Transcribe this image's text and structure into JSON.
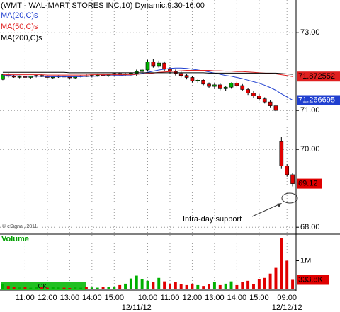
{
  "chart_data": {
    "type": "candlestick",
    "title": "(WMT - WAL-MART STORES INC,10) Dynamic,9:30-16:00",
    "categories": [
      null,
      null,
      null,
      null,
      "11:00",
      null,
      null,
      null,
      "12:00",
      null,
      null,
      null,
      "13:00",
      null,
      null,
      null,
      "14:00",
      null,
      null,
      null,
      "15:00",
      null,
      null,
      null,
      null,
      null,
      "10:00",
      null,
      null,
      null,
      "11:00",
      null,
      null,
      null,
      "12:00",
      null,
      null,
      null,
      "13:00",
      null,
      null,
      null,
      "14:00",
      null,
      null,
      null,
      "15:00",
      null,
      null,
      null,
      null,
      "09:00",
      null
    ],
    "date_labels": [
      null,
      null,
      null,
      null,
      null,
      null,
      null,
      null,
      null,
      null,
      null,
      null,
      null,
      null,
      null,
      null,
      null,
      null,
      null,
      null,
      null,
      null,
      null,
      null,
      "12/11/12",
      null,
      null,
      null,
      null,
      null,
      null,
      null,
      null,
      null,
      null,
      null,
      null,
      null,
      null,
      null,
      null,
      null,
      null,
      null,
      null,
      null,
      null,
      null,
      null,
      null,
      null,
      "12/12/12",
      null
    ],
    "open": [
      71.8,
      71.92,
      71.88,
      71.86,
      71.87,
      71.85,
      71.88,
      71.9,
      71.87,
      71.85,
      71.86,
      71.89,
      71.86,
      71.84,
      71.87,
      71.89,
      71.88,
      71.9,
      71.92,
      71.9,
      71.93,
      71.95,
      71.92,
      71.94,
      71.95,
      72.0,
      72.04,
      72.25,
      72.15,
      72.22,
      72.06,
      72.0,
      71.95,
      71.9,
      71.85,
      71.76,
      71.78,
      71.68,
      71.62,
      71.66,
      71.56,
      71.6,
      71.7,
      71.64,
      71.54,
      71.45,
      71.38,
      71.3,
      71.22,
      71.12,
      70.2,
      69.58,
      69.35
    ],
    "high": [
      71.95,
      71.96,
      71.92,
      71.9,
      71.9,
      71.89,
      71.92,
      71.93,
      71.9,
      71.88,
      71.9,
      71.92,
      71.89,
      71.88,
      71.91,
      71.93,
      71.92,
      71.95,
      71.96,
      71.94,
      71.97,
      71.98,
      71.96,
      71.98,
      72.05,
      72.08,
      72.3,
      72.32,
      72.28,
      72.26,
      72.12,
      72.05,
      72.0,
      71.95,
      71.88,
      71.82,
      71.8,
      71.72,
      71.7,
      71.7,
      71.62,
      71.72,
      71.74,
      71.68,
      71.58,
      71.5,
      71.42,
      71.34,
      71.26,
      71.16,
      70.32,
      69.62,
      69.4
    ],
    "low": [
      71.78,
      71.85,
      71.84,
      71.83,
      71.84,
      71.82,
      71.85,
      71.86,
      71.83,
      71.82,
      71.84,
      71.85,
      71.82,
      71.81,
      71.85,
      71.86,
      71.85,
      71.87,
      71.88,
      71.87,
      71.9,
      71.9,
      71.88,
      71.9,
      71.88,
      71.95,
      72.0,
      72.1,
      72.1,
      72.02,
      71.95,
      71.9,
      71.85,
      71.8,
      71.72,
      71.7,
      71.65,
      71.58,
      71.55,
      71.52,
      71.5,
      71.56,
      71.6,
      71.5,
      71.4,
      71.32,
      71.25,
      71.18,
      71.08,
      70.95,
      69.5,
      69.3,
      69.05
    ],
    "close": [
      71.92,
      71.88,
      71.86,
      71.87,
      71.85,
      71.88,
      71.9,
      71.87,
      71.85,
      71.86,
      71.89,
      71.86,
      71.84,
      71.87,
      71.89,
      71.88,
      71.9,
      71.92,
      71.9,
      71.93,
      71.95,
      71.92,
      71.94,
      71.96,
      72.0,
      72.04,
      72.25,
      72.15,
      72.22,
      72.06,
      72.0,
      71.95,
      71.9,
      71.85,
      71.76,
      71.78,
      71.68,
      71.62,
      71.66,
      71.56,
      71.6,
      71.7,
      71.64,
      71.54,
      71.45,
      71.38,
      71.3,
      71.22,
      71.12,
      71.0,
      69.58,
      69.35,
      69.12
    ],
    "up_color": "#00b000",
    "down_color": "#e00000",
    "ylim": [
      67.84,
      73.84
    ],
    "yticks": [
      {
        "value": 73,
        "label": "73.00"
      },
      {
        "value": 71,
        "label": "71.00"
      },
      {
        "value": 70,
        "label": "70.00"
      },
      {
        "value": 68,
        "label": "68.00"
      }
    ],
    "grid": true,
    "series": [
      {
        "name": "MA(20,C)s",
        "color": "#1f3fd0",
        "last_value_box": true,
        "values": [
          71.9,
          71.9,
          71.89,
          71.89,
          71.88,
          71.88,
          71.88,
          71.88,
          71.87,
          71.87,
          71.87,
          71.87,
          71.87,
          71.87,
          71.87,
          71.88,
          71.88,
          71.88,
          71.89,
          71.89,
          71.9,
          71.9,
          71.91,
          71.91,
          71.93,
          71.95,
          71.98,
          72.01,
          72.04,
          72.06,
          72.08,
          72.09,
          72.09,
          72.08,
          72.06,
          72.04,
          72.02,
          71.99,
          71.96,
          71.93,
          71.9,
          71.88,
          71.85,
          71.82,
          71.78,
          71.74,
          71.7,
          71.65,
          71.59,
          71.52,
          71.43,
          71.35,
          71.266695
        ]
      },
      {
        "name": "MA(50,C)s",
        "color": "#e02020",
        "last_value_box": true,
        "values": [
          71.92,
          71.92,
          71.92,
          71.92,
          71.92,
          71.92,
          71.92,
          71.92,
          71.91,
          71.91,
          71.91,
          71.91,
          71.91,
          71.91,
          71.91,
          71.91,
          71.92,
          71.92,
          71.92,
          71.92,
          71.92,
          71.92,
          71.92,
          71.92,
          71.93,
          71.94,
          71.95,
          71.96,
          71.98,
          71.99,
          72.0,
          72.01,
          72.02,
          72.03,
          72.03,
          72.03,
          72.03,
          72.03,
          72.02,
          72.02,
          72.01,
          72.01,
          72.0,
          72.0,
          71.99,
          71.98,
          71.97,
          71.96,
          71.95,
          71.94,
          71.92,
          71.9,
          71.872552
        ]
      },
      {
        "name": "MA(200,C)s",
        "color": "#000000",
        "last_value_box": false,
        "values": [
          71.98,
          71.98,
          71.98,
          71.98,
          71.98,
          71.98,
          71.98,
          71.98,
          71.98,
          71.98,
          71.98,
          71.98,
          71.97,
          71.97,
          71.97,
          71.97,
          71.97,
          71.97,
          71.97,
          71.97,
          71.97,
          71.97,
          71.97,
          71.97,
          71.97,
          71.97,
          71.97,
          71.97,
          71.97,
          71.97,
          71.97,
          71.97,
          71.97,
          71.97,
          71.97,
          71.97,
          71.97,
          71.96,
          71.96,
          71.96,
          71.96,
          71.96,
          71.96,
          71.96,
          71.96,
          71.96,
          71.96,
          71.96,
          71.96,
          71.96,
          71.95,
          71.94,
          71.93
        ]
      }
    ],
    "volume": {
      "title": "Volume",
      "title_color": "#00a000",
      "values": [
        180000,
        120000,
        90000,
        70000,
        80000,
        60000,
        90000,
        70000,
        60000,
        80000,
        70000,
        60000,
        50000,
        70000,
        60000,
        80000,
        70000,
        60000,
        90000,
        80000,
        100000,
        150000,
        200000,
        380000,
        480000,
        350000,
        300000,
        250000,
        400000,
        280000,
        200000,
        250000,
        180000,
        150000,
        200000,
        150000,
        120000,
        180000,
        250000,
        150000,
        200000,
        280000,
        150000,
        250000,
        300000,
        180000,
        350000,
        400000,
        550000,
        750000,
        1800000,
        1000000,
        333800
      ],
      "value_labels": [
        null,
        null,
        null,
        null,
        null,
        null,
        null,
        null,
        null,
        null,
        null,
        null,
        null,
        null,
        null,
        null,
        null,
        null,
        null,
        null,
        null,
        null,
        null,
        null,
        null,
        null,
        null,
        null,
        null,
        null,
        null,
        null,
        null,
        null,
        null,
        null,
        null,
        null,
        null,
        null,
        null,
        null,
        null,
        null,
        null,
        null,
        null,
        null,
        null,
        null,
        null,
        null,
        "333.8K"
      ],
      "ylim": [
        0,
        1900000
      ],
      "yticks": [
        {
          "value": 1000000,
          "label": "1M"
        }
      ]
    },
    "annotation": "Intra-day support",
    "copyright": "© eSignal, 2011",
    "status": "OK"
  }
}
